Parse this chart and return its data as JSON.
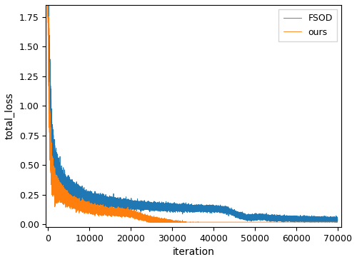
{
  "title": "",
  "xlabel": "iteration",
  "ylabel": "total_loss",
  "xlim": [
    -500,
    71000
  ],
  "ylim": [
    -0.02,
    1.85
  ],
  "yticks": [
    0.0,
    0.25,
    0.5,
    0.75,
    1.0,
    1.25,
    1.5,
    1.75
  ],
  "xticks": [
    0,
    10000,
    20000,
    30000,
    40000,
    50000,
    60000,
    70000
  ],
  "fsod_color": "#1f77b4",
  "ours_color": "#ff7f0e",
  "legend_labels": [
    "FSOD",
    "ours"
  ],
  "linewidth": 0.6,
  "n_points": 70000,
  "fsod_start": 1.73,
  "ours_start": 1.6,
  "fsod_end": 0.1,
  "ours_end": 0.07,
  "fsod_plateau": 0.25,
  "ours_plateau": 0.24,
  "fsod_step_iter": 47000,
  "fsod_step_val": 0.19,
  "ours_diverge_iter": 25000,
  "ours_diverge_val": 0.13
}
